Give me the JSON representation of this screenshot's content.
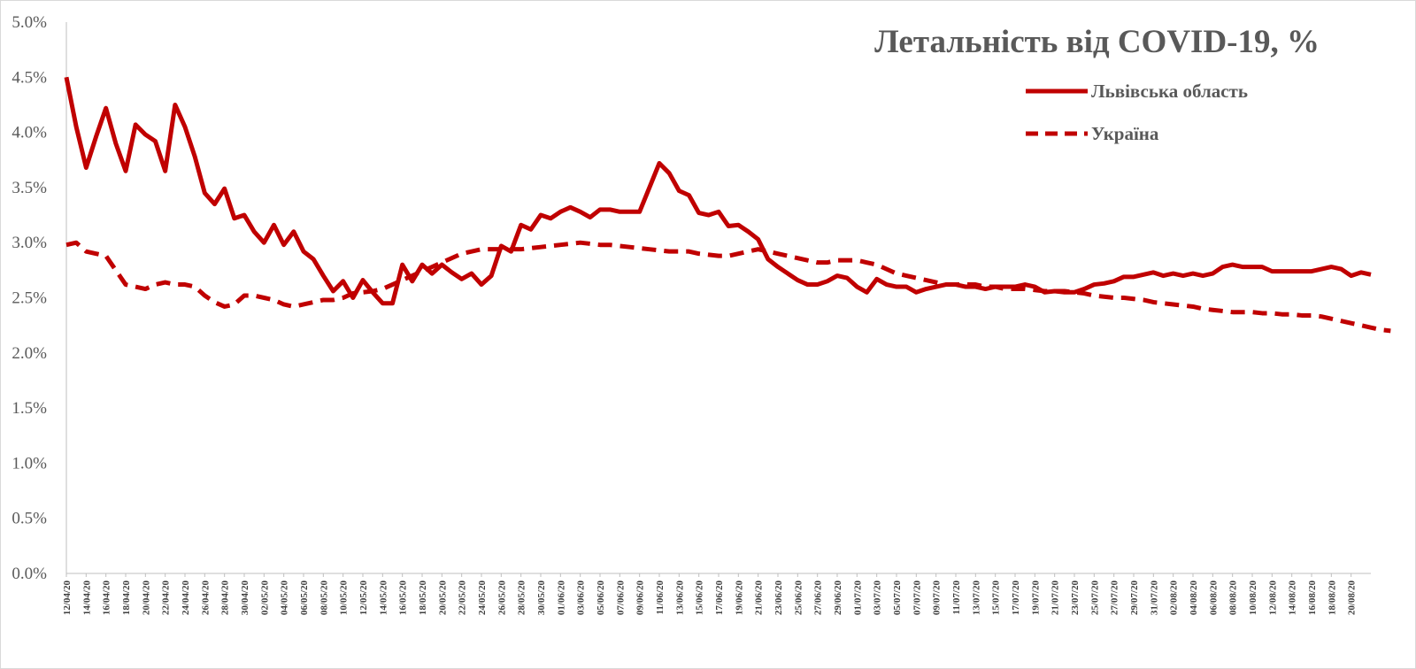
{
  "chart_data": {
    "type": "line",
    "title": "Летальність від COVID-19, %",
    "xlabel": "",
    "ylabel": "",
    "ylim": [
      0,
      5
    ],
    "y_ticks": [
      "0.0%",
      "0.5%",
      "1.0%",
      "1.5%",
      "2.0%",
      "2.5%",
      "3.0%",
      "3.5%",
      "4.0%",
      "4.5%",
      "5.0%"
    ],
    "grid": false,
    "legend_position": "top-right",
    "x_start": "12/04/20",
    "x_tick_labels": [
      "12/04/20",
      "14/04/20",
      "16/04/20",
      "18/04/20",
      "20/04/20",
      "22/04/20",
      "24/04/20",
      "26/04/20",
      "28/04/20",
      "30/04/20",
      "02/05/20",
      "04/05/20",
      "06/05/20",
      "08/05/20",
      "10/05/20",
      "12/05/20",
      "14/05/20",
      "16/05/20",
      "18/05/20",
      "20/05/20",
      "22/05/20",
      "24/05/20",
      "26/05/20",
      "28/05/20",
      "30/05/20",
      "01/06/20",
      "03/06/20",
      "05/06/20",
      "07/06/20",
      "09/06/20",
      "11/06/20",
      "13/06/20",
      "15/06/20",
      "17/06/20",
      "19/06/20",
      "21/06/20",
      "23/06/20",
      "25/06/20",
      "27/06/20",
      "29/06/20",
      "01/07/20",
      "03/07/20",
      "05/07/20",
      "07/07/20",
      "09/07/20",
      "11/07/20",
      "13/07/20",
      "15/07/20",
      "17/07/20",
      "19/07/20",
      "21/07/20",
      "23/07/20",
      "25/07/20",
      "27/07/20",
      "29/07/20",
      "31/07/20",
      "02/08/20",
      "04/08/20",
      "06/08/20",
      "08/08/20",
      "10/08/20",
      "12/08/20",
      "14/08/20",
      "16/08/20",
      "18/08/20",
      "20/08/20"
    ],
    "series": [
      {
        "name": "Львівська область",
        "color": "#c00000",
        "dash": "solid",
        "values": [
          4.5,
          4.05,
          3.68,
          3.96,
          4.22,
          3.9,
          3.65,
          4.07,
          3.98,
          3.92,
          3.65,
          4.25,
          4.05,
          3.78,
          3.45,
          3.35,
          3.49,
          3.22,
          3.25,
          3.1,
          3.0,
          3.16,
          2.98,
          3.1,
          2.92,
          2.85,
          2.7,
          2.56,
          2.65,
          2.5,
          2.66,
          2.55,
          2.45,
          2.45,
          2.8,
          2.65,
          2.8,
          2.72,
          2.8,
          2.73,
          2.67,
          2.72,
          2.62,
          2.7,
          2.97,
          2.92,
          3.16,
          3.12,
          3.25,
          3.22,
          3.28,
          3.32,
          3.28,
          3.23,
          3.3,
          3.3,
          3.28,
          3.28,
          3.28,
          3.5,
          3.72,
          3.63,
          3.47,
          3.43,
          3.27,
          3.25,
          3.28,
          3.15,
          3.16,
          3.1,
          3.03,
          2.85,
          2.78,
          2.72,
          2.66,
          2.62,
          2.62,
          2.65,
          2.7,
          2.68,
          2.6,
          2.55,
          2.67,
          2.62,
          2.6,
          2.6,
          2.55,
          2.58,
          2.6,
          2.62,
          2.62,
          2.6,
          2.6,
          2.58,
          2.6,
          2.6,
          2.6,
          2.62,
          2.6,
          2.55,
          2.56,
          2.55,
          2.55,
          2.58,
          2.62,
          2.63,
          2.65,
          2.69,
          2.69,
          2.71,
          2.73,
          2.7,
          2.72,
          2.7,
          2.72,
          2.7,
          2.72,
          2.78,
          2.8,
          2.78,
          2.78,
          2.78,
          2.74,
          2.74,
          2.74,
          2.74,
          2.74,
          2.76,
          2.78,
          2.76,
          2.7,
          2.73,
          2.71
        ]
      },
      {
        "name": "Україна",
        "color": "#c00000",
        "dash": "dashed",
        "values": [
          2.98,
          3.0,
          2.92,
          2.9,
          2.88,
          2.75,
          2.62,
          2.6,
          2.58,
          2.62,
          2.64,
          2.62,
          2.62,
          2.6,
          2.52,
          2.46,
          2.42,
          2.44,
          2.52,
          2.52,
          2.5,
          2.48,
          2.44,
          2.42,
          2.44,
          2.46,
          2.48,
          2.48,
          2.5,
          2.54,
          2.55,
          2.56,
          2.58,
          2.62,
          2.66,
          2.7,
          2.74,
          2.78,
          2.82,
          2.86,
          2.9,
          2.92,
          2.94,
          2.94,
          2.94,
          2.94,
          2.94,
          2.95,
          2.96,
          2.97,
          2.98,
          2.99,
          3.0,
          2.99,
          2.98,
          2.98,
          2.97,
          2.96,
          2.95,
          2.94,
          2.93,
          2.92,
          2.92,
          2.92,
          2.9,
          2.89,
          2.88,
          2.88,
          2.9,
          2.92,
          2.94,
          2.92,
          2.9,
          2.88,
          2.86,
          2.84,
          2.82,
          2.82,
          2.84,
          2.84,
          2.84,
          2.82,
          2.8,
          2.76,
          2.72,
          2.7,
          2.68,
          2.66,
          2.64,
          2.62,
          2.62,
          2.62,
          2.62,
          2.6,
          2.6,
          2.58,
          2.58,
          2.58,
          2.57,
          2.56,
          2.56,
          2.56,
          2.55,
          2.54,
          2.52,
          2.51,
          2.5,
          2.5,
          2.49,
          2.48,
          2.46,
          2.45,
          2.44,
          2.43,
          2.42,
          2.4,
          2.39,
          2.38,
          2.37,
          2.37,
          2.37,
          2.36,
          2.36,
          2.35,
          2.35,
          2.34,
          2.34,
          2.33,
          2.31,
          2.29,
          2.27,
          2.25,
          2.23,
          2.21,
          2.2
        ]
      }
    ]
  }
}
